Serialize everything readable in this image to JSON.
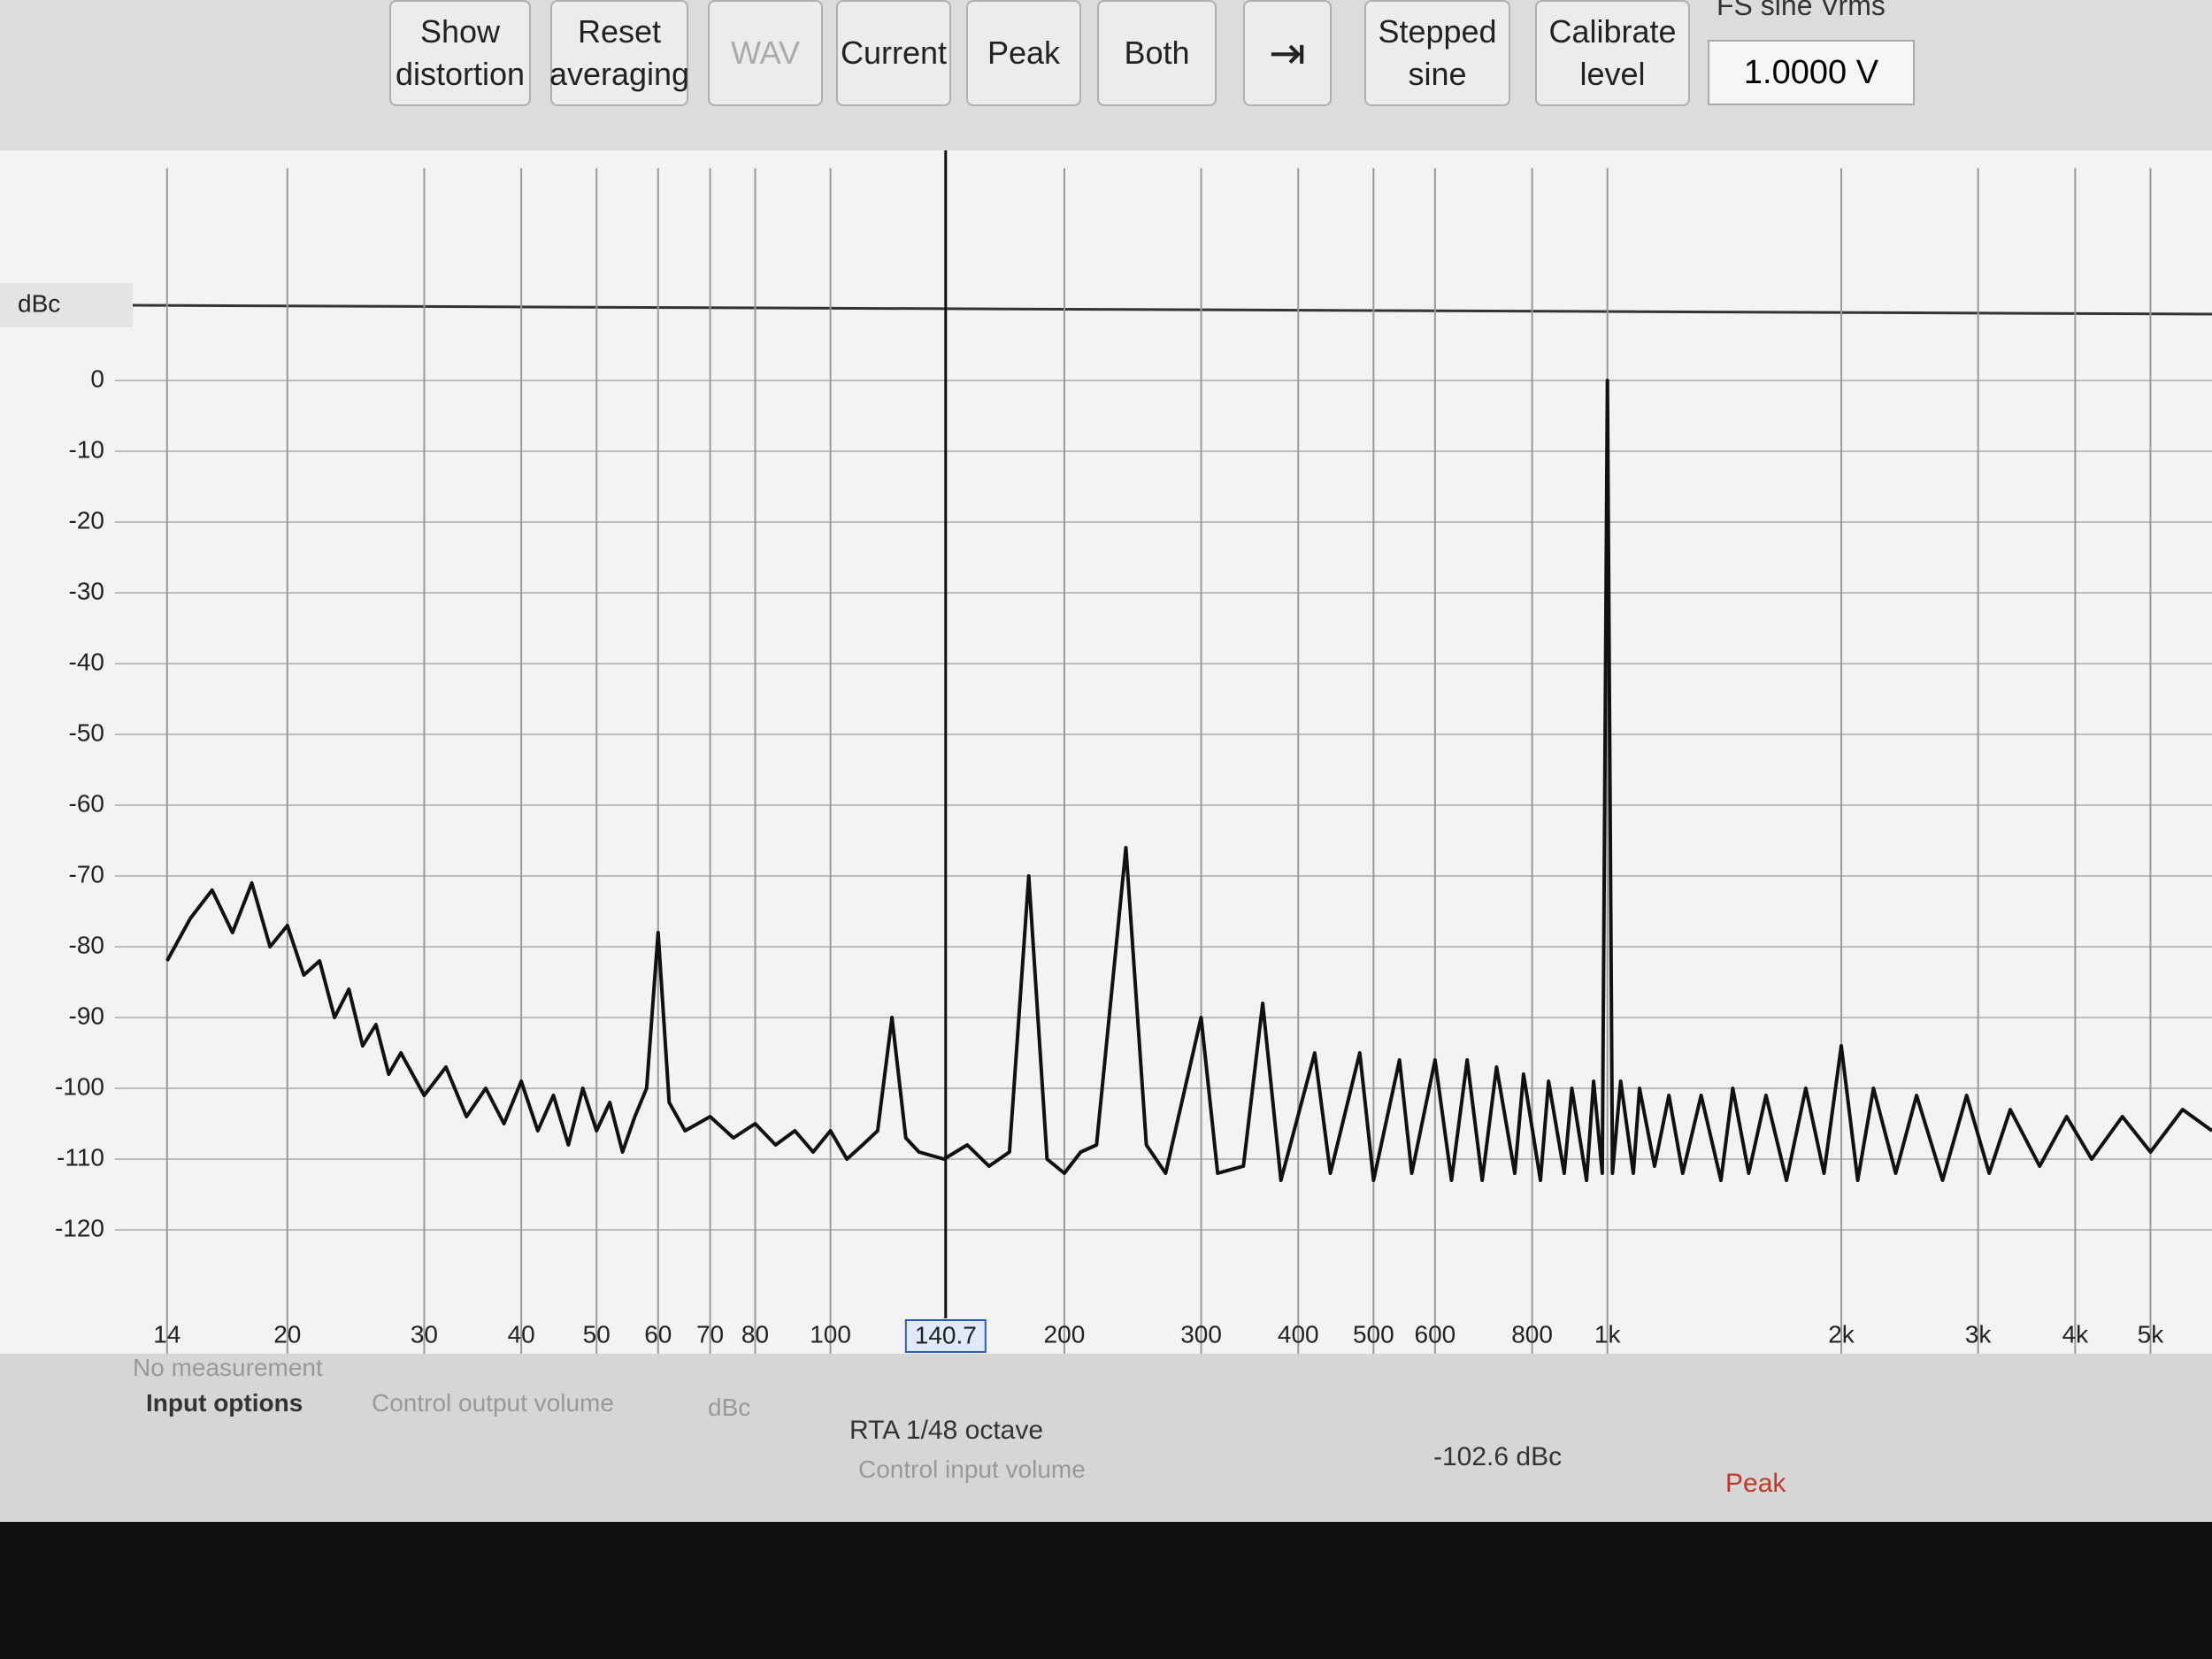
{
  "toolbar": {
    "buttons": [
      "Show distortion",
      "Reset averaging",
      "WAV",
      "Current",
      "Peak",
      "Both",
      "Stepped sine",
      "Calibrate level"
    ],
    "level_label": "FS sine Vrms",
    "level_value": "1.0000 V"
  },
  "unit_selector": "dBc",
  "chart_data": {
    "type": "line",
    "x": [
      14,
      15,
      16,
      17,
      18,
      19,
      20,
      21,
      22,
      23,
      24,
      25,
      26,
      27,
      28,
      30,
      32,
      34,
      36,
      38,
      40,
      42,
      44,
      46,
      48,
      50,
      52,
      54,
      56,
      58,
      60,
      62,
      65,
      70,
      75,
      80,
      85,
      90,
      95,
      100,
      105,
      110,
      115,
      120,
      125,
      130,
      140,
      150,
      160,
      170,
      180,
      190,
      200,
      210,
      220,
      240,
      255,
      270,
      300,
      315,
      340,
      360,
      380,
      420,
      440,
      480,
      500,
      540,
      560,
      600,
      630,
      660,
      690,
      720,
      760,
      780,
      820,
      840,
      880,
      900,
      940,
      960,
      985,
      1000,
      1015,
      1040,
      1080,
      1100,
      1150,
      1200,
      1250,
      1320,
      1400,
      1450,
      1520,
      1600,
      1700,
      1800,
      1900,
      2000,
      2100,
      2200,
      2350,
      2500,
      2700,
      2900,
      3100,
      3300,
      3600,
      3900,
      4200,
      4600,
      5000,
      5500,
      6000
    ],
    "series": [
      {
        "name": "RTA 1/48 octave",
        "color": "#111111",
        "values": [
          -82,
          -76,
          -72,
          -78,
          -71,
          -80,
          -77,
          -84,
          -82,
          -90,
          -86,
          -94,
          -91,
          -98,
          -95,
          -101,
          -97,
          -104,
          -100,
          -105,
          -99,
          -106,
          -101,
          -108,
          -100,
          -106,
          -102,
          -109,
          -104,
          -100,
          -78,
          -102,
          -106,
          -104,
          -107,
          -105,
          -108,
          -106,
          -109,
          -106,
          -110,
          -108,
          -106,
          -90,
          -107,
          -109,
          -110,
          -108,
          -111,
          -109,
          -70,
          -110,
          -112,
          -109,
          -108,
          -66,
          -108,
          -112,
          -90,
          -112,
          -111,
          -88,
          -113,
          -95,
          -112,
          -95,
          -113,
          -96,
          -112,
          -96,
          -113,
          -96,
          -113,
          -97,
          -112,
          -98,
          -113,
          -99,
          -112,
          -100,
          -113,
          -99,
          -112,
          0,
          -112,
          -99,
          -112,
          -100,
          -111,
          -101,
          -112,
          -101,
          -113,
          -100,
          -112,
          -101,
          -113,
          -100,
          -112,
          -94,
          -113,
          -100,
          -112,
          -101,
          -113,
          -101,
          -112,
          -103,
          -111,
          -104,
          -110,
          -104,
          -109,
          -103,
          -106
        ]
      }
    ],
    "xlim": [
      12,
      6000
    ],
    "log_x": true,
    "xticks": [
      14,
      20,
      30,
      40,
      50,
      60,
      70,
      80,
      100,
      200,
      300,
      400,
      500,
      600,
      800,
      {
        "value": 1000,
        "label": "1k"
      },
      {
        "value": 2000,
        "label": "2k"
      },
      {
        "value": 3000,
        "label": "3k"
      },
      {
        "value": 4000,
        "label": "4k"
      },
      {
        "value": 5000,
        "label": "5k"
      }
    ],
    "ylim": [
      -130,
      30
    ],
    "yticks": [
      0,
      -10,
      -20,
      -30,
      -40,
      -50,
      -60,
      -70,
      -80,
      -90,
      -100,
      -110,
      -120
    ],
    "grid": true,
    "cursor": 140.7
  },
  "status": {
    "no_measurement": "No measurement",
    "input_options": "Input options",
    "control_output": "Control output volume",
    "unit": "dBc",
    "rta": "RTA 1/48 octave",
    "control_input": "Control input volume",
    "readout": "-102.6 dBc",
    "peak": "Peak"
  }
}
